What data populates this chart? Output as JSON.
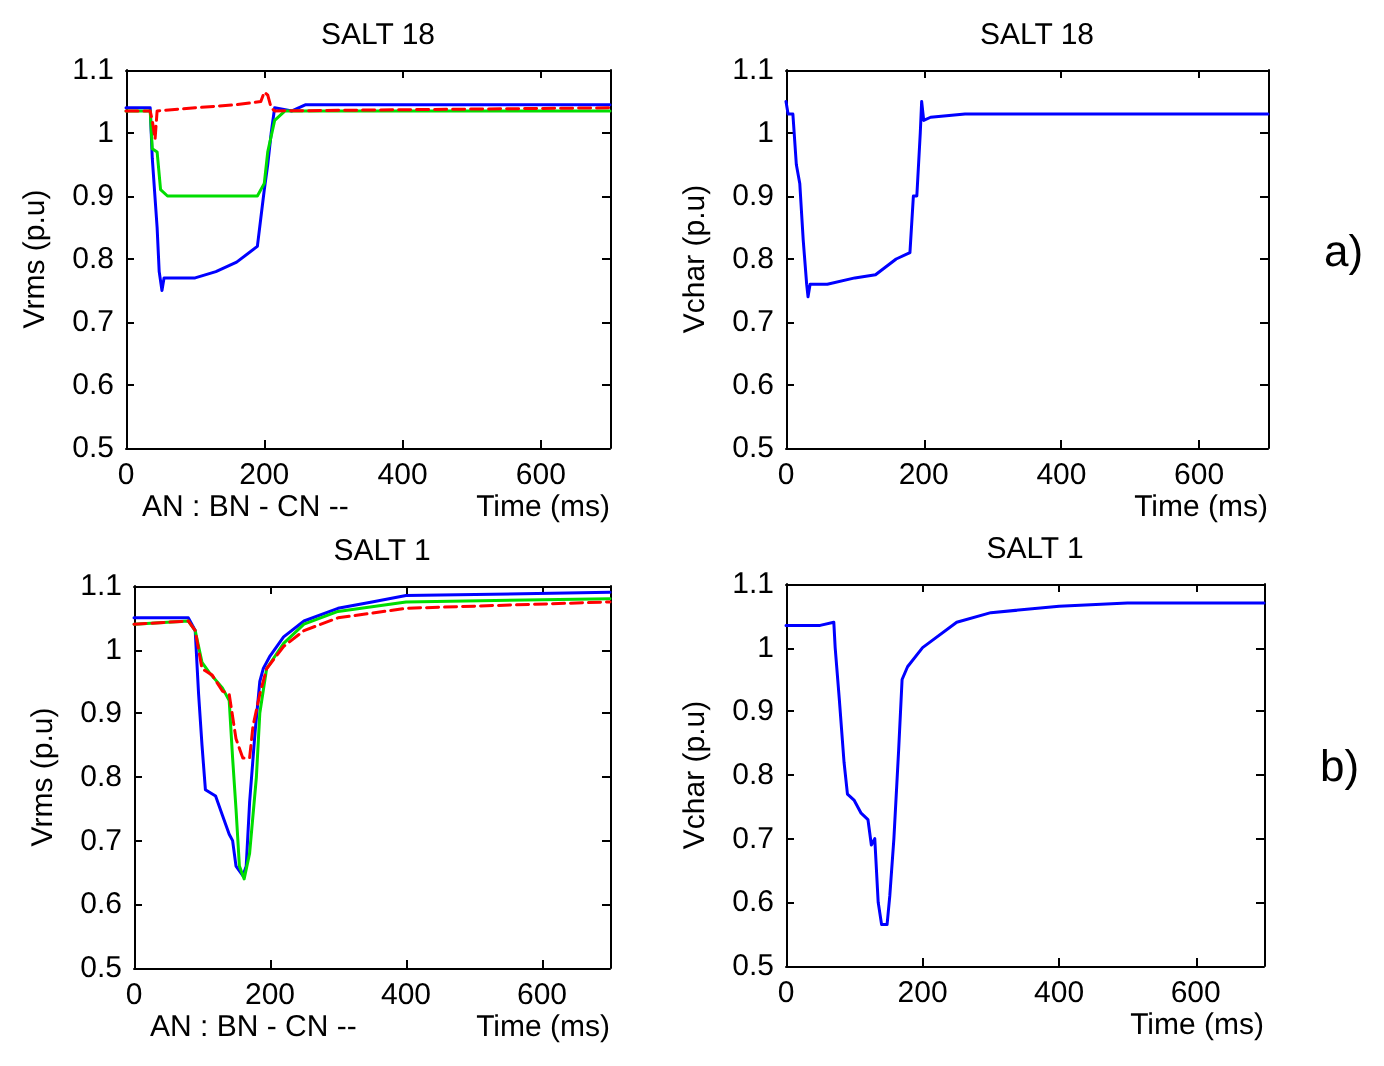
{
  "chart_data": [
    {
      "type": "line",
      "title": "SALT 18",
      "ylabel": "Vrms (p.u)",
      "xlabel": "Time (ms)",
      "annotations": [
        "AN : BN - CN --"
      ],
      "xlim": [
        0,
        700
      ],
      "xticks": [
        0,
        200,
        400,
        600
      ],
      "ylim": [
        0.5,
        1.1
      ],
      "yticks": [
        0.5,
        0.6,
        0.7,
        0.8,
        0.9,
        1,
        1.1
      ],
      "grid": false,
      "marker": "none",
      "series": [
        {
          "color": "#0000ff",
          "line_style": "solid",
          "x": [
            0,
            35,
            38,
            45,
            48,
            52,
            55,
            80,
            100,
            130,
            160,
            190,
            200,
            205,
            210,
            215,
            240,
            260,
            700
          ],
          "values": [
            1.04,
            1.04,
            0.96,
            0.85,
            0.78,
            0.75,
            0.77,
            0.77,
            0.77,
            0.78,
            0.795,
            0.82,
            0.91,
            0.95,
            1.0,
            1.04,
            1.035,
            1.045,
            1.045
          ]
        },
        {
          "color": "#00dd00",
          "line_style": "solid",
          "x": [
            0,
            35,
            38,
            45,
            50,
            60,
            100,
            190,
            200,
            205,
            215,
            230,
            700
          ],
          "values": [
            1.035,
            1.035,
            0.975,
            0.97,
            0.91,
            0.9,
            0.9,
            0.9,
            0.92,
            0.97,
            1.02,
            1.035,
            1.035
          ]
        },
        {
          "color": "#ff0000",
          "line_style": "dashed",
          "x": [
            0,
            35,
            38,
            42,
            45,
            100,
            160,
            195,
            200,
            205,
            210,
            215,
            700
          ],
          "values": [
            1.035,
            1.035,
            1.02,
            0.99,
            1.035,
            1.04,
            1.045,
            1.05,
            1.065,
            1.06,
            1.04,
            1.035,
            1.04
          ]
        }
      ]
    },
    {
      "type": "line",
      "title": "SALT 18",
      "ylabel": "Vchar (p.u)",
      "xlabel": "Time (ms)",
      "annotations": [
        "a)"
      ],
      "xlim": [
        0,
        700
      ],
      "xticks": [
        0,
        200,
        400,
        600
      ],
      "ylim": [
        0.5,
        1.1
      ],
      "yticks": [
        0.5,
        0.6,
        0.7,
        0.8,
        0.9,
        1,
        1.1
      ],
      "grid": false,
      "marker": "none",
      "series": [
        {
          "color": "#0000ff",
          "line_style": "solid",
          "x": [
            0,
            3,
            10,
            15,
            20,
            25,
            30,
            32,
            35,
            60,
            100,
            130,
            160,
            180,
            185,
            190,
            195,
            197,
            200,
            210,
            260,
            700
          ],
          "values": [
            1.05,
            1.03,
            1.03,
            0.95,
            0.92,
            0.83,
            0.76,
            0.74,
            0.76,
            0.76,
            0.77,
            0.775,
            0.8,
            0.81,
            0.9,
            0.9,
            1.0,
            1.05,
            1.02,
            1.025,
            1.03,
            1.03
          ]
        }
      ]
    },
    {
      "type": "line",
      "title": "SALT 1",
      "ylabel": "Vrms (p.u)",
      "xlabel": "Time (ms)",
      "annotations": [
        "AN : BN - CN --"
      ],
      "xlim": [
        0,
        700
      ],
      "xticks": [
        0,
        200,
        400,
        600
      ],
      "ylim": [
        0.5,
        1.1
      ],
      "yticks": [
        0.5,
        0.6,
        0.7,
        0.8,
        0.9,
        1,
        1.1
      ],
      "grid": false,
      "marker": "none",
      "series": [
        {
          "color": "#0000ff",
          "line_style": "solid",
          "x": [
            0,
            80,
            90,
            95,
            100,
            105,
            120,
            130,
            140,
            145,
            150,
            160,
            165,
            170,
            178,
            185,
            190,
            200,
            220,
            250,
            300,
            350,
            400,
            700
          ],
          "values": [
            1.05,
            1.05,
            1.03,
            0.93,
            0.85,
            0.78,
            0.77,
            0.74,
            0.71,
            0.7,
            0.66,
            0.645,
            0.66,
            0.76,
            0.87,
            0.95,
            0.97,
            0.99,
            1.02,
            1.045,
            1.065,
            1.075,
            1.085,
            1.09
          ]
        },
        {
          "color": "#00dd00",
          "line_style": "solid",
          "x": [
            0,
            80,
            90,
            100,
            110,
            130,
            140,
            145,
            150,
            155,
            162,
            170,
            180,
            185,
            195,
            220,
            250,
            300,
            400,
            700
          ],
          "values": [
            1.04,
            1.045,
            1.03,
            0.98,
            0.965,
            0.94,
            0.92,
            0.83,
            0.75,
            0.66,
            0.64,
            0.68,
            0.8,
            0.9,
            0.97,
            1.01,
            1.04,
            1.06,
            1.075,
            1.08
          ]
        },
        {
          "color": "#ff0000",
          "line_style": "dashed",
          "x": [
            0,
            80,
            90,
            100,
            115,
            130,
            140,
            150,
            160,
            170,
            175,
            185,
            195,
            220,
            250,
            300,
            400,
            700
          ],
          "values": [
            1.04,
            1.045,
            1.03,
            0.97,
            0.96,
            0.935,
            0.93,
            0.86,
            0.83,
            0.83,
            0.88,
            0.93,
            0.97,
            1.005,
            1.03,
            1.05,
            1.065,
            1.075
          ]
        }
      ]
    },
    {
      "type": "line",
      "title": "SALT 1",
      "ylabel": "Vchar (p.u)",
      "xlabel": "Time (ms)",
      "annotations": [
        "b)"
      ],
      "xlim": [
        0,
        700
      ],
      "xticks": [
        0,
        200,
        400,
        600
      ],
      "ylim": [
        0.5,
        1.1
      ],
      "yticks": [
        0.5,
        0.6,
        0.7,
        0.8,
        0.9,
        1,
        1.1
      ],
      "grid": false,
      "marker": "none",
      "series": [
        {
          "color": "#0000ff",
          "line_style": "solid",
          "x": [
            0,
            50,
            70,
            72,
            78,
            85,
            90,
            100,
            110,
            120,
            125,
            130,
            135,
            140,
            148,
            152,
            158,
            165,
            170,
            178,
            200,
            250,
            300,
            400,
            500,
            700
          ],
          "values": [
            1.035,
            1.035,
            1.04,
            1.0,
            0.92,
            0.82,
            0.77,
            0.76,
            0.74,
            0.73,
            0.69,
            0.7,
            0.6,
            0.565,
            0.565,
            0.61,
            0.7,
            0.84,
            0.95,
            0.97,
            1.0,
            1.04,
            1.055,
            1.065,
            1.07,
            1.07
          ]
        }
      ]
    }
  ]
}
